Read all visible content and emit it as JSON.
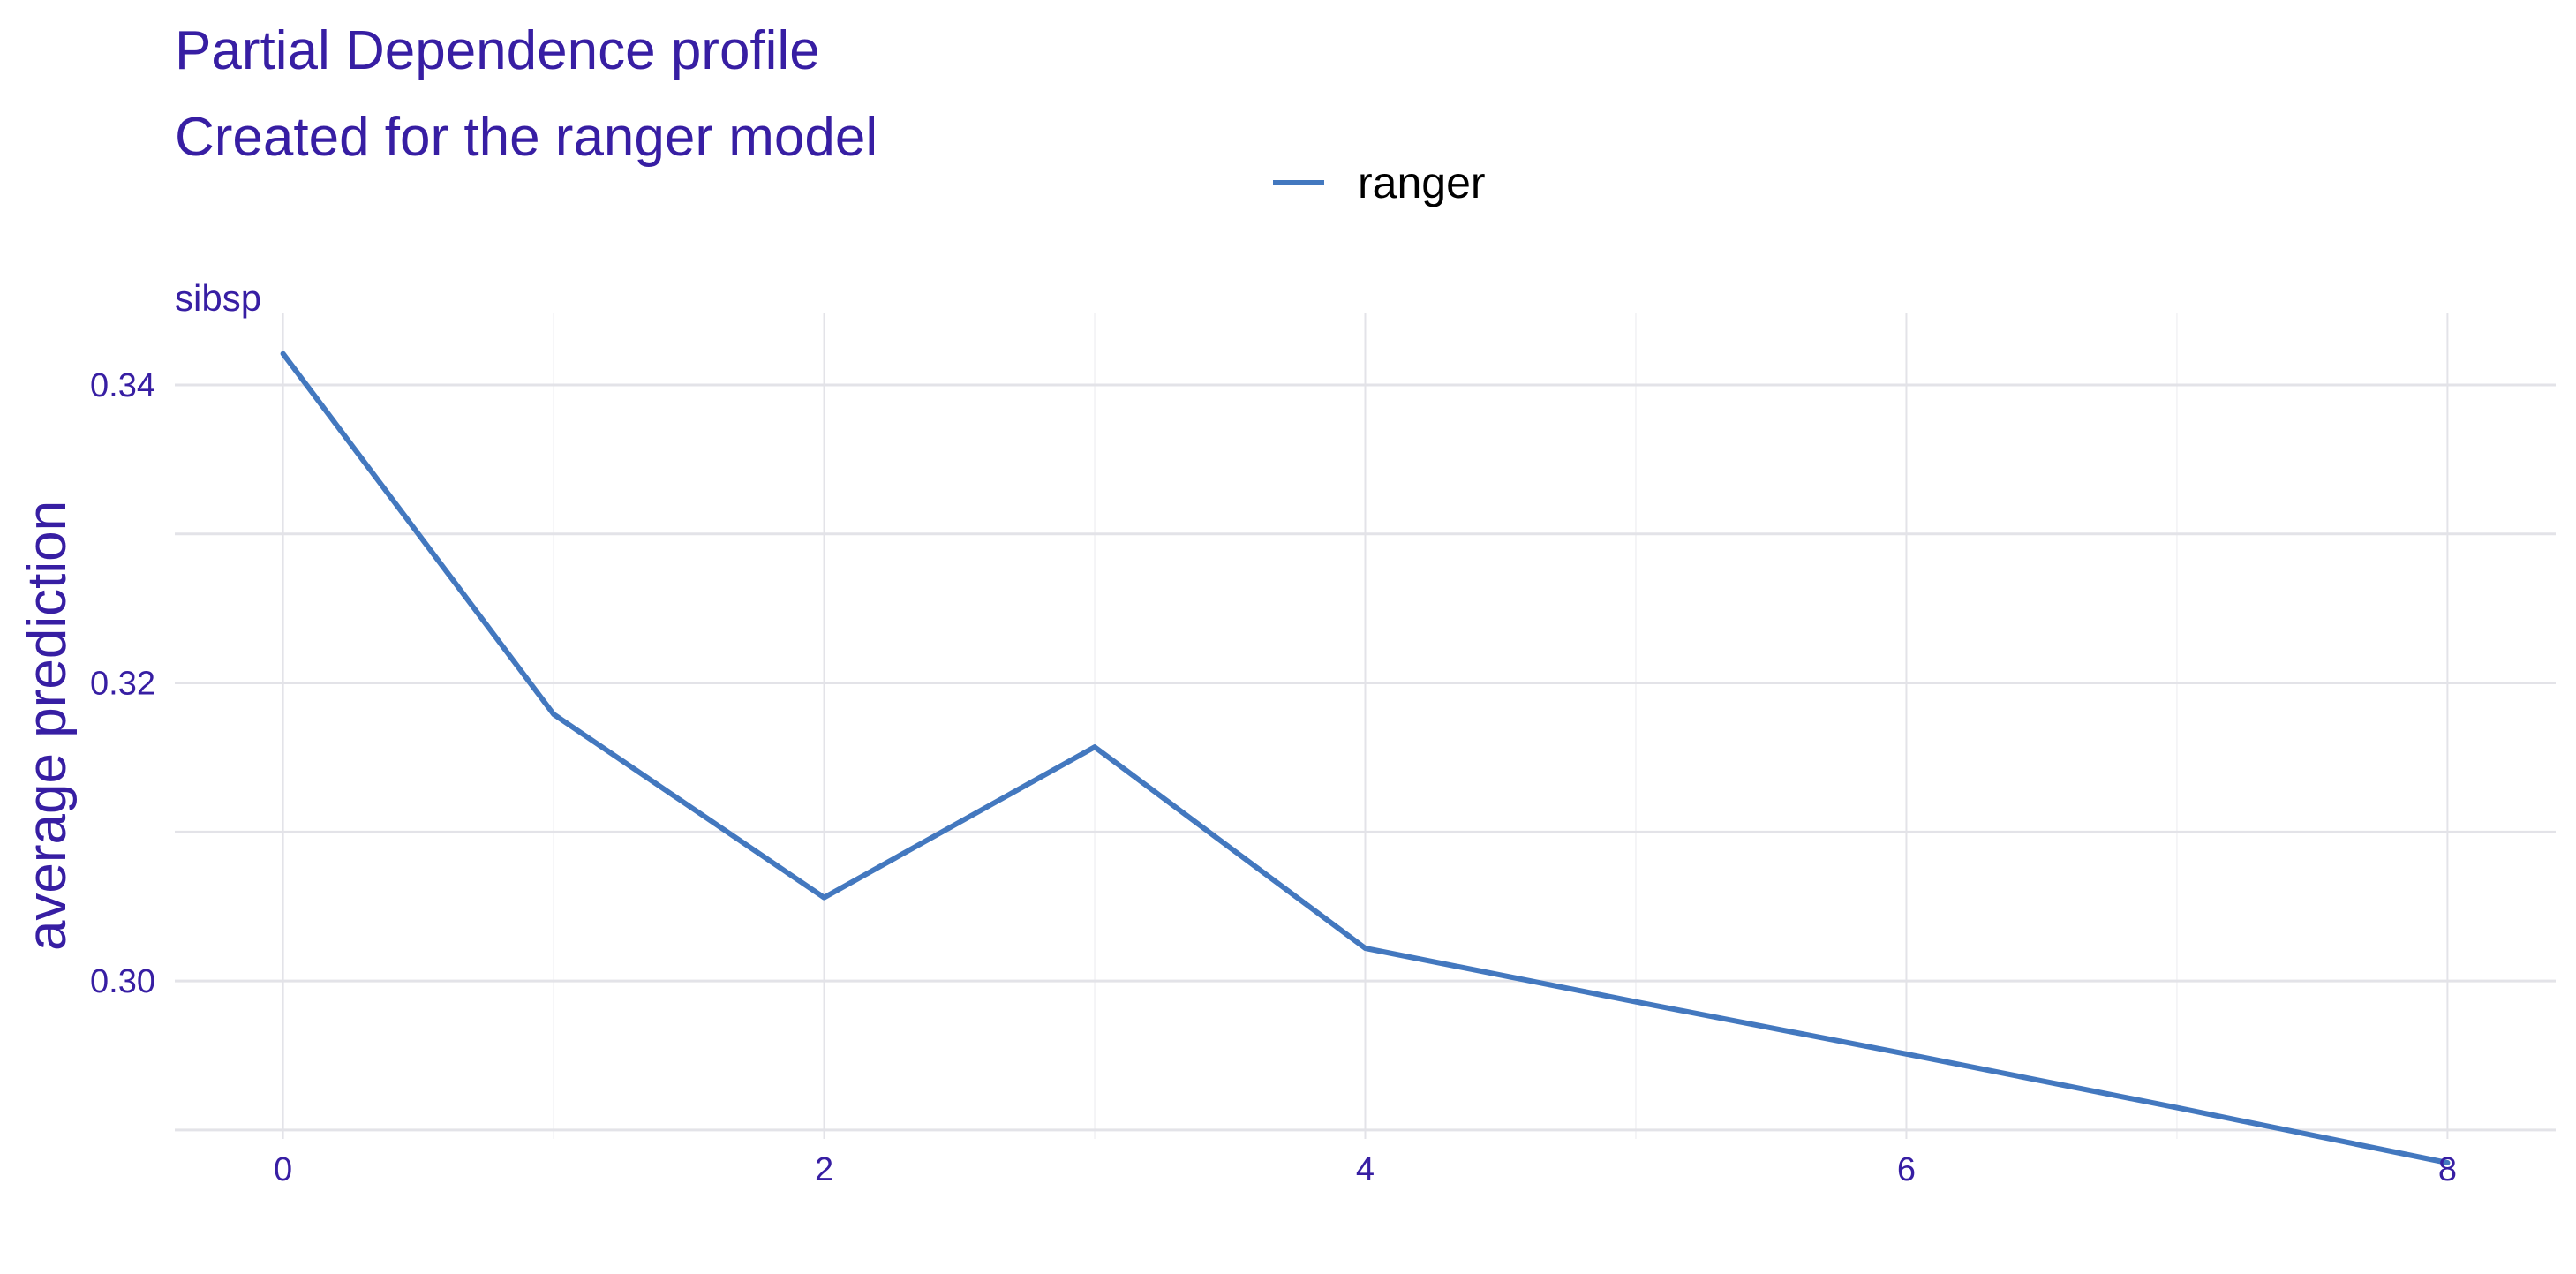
{
  "chart_data": {
    "type": "line",
    "title": "Partial Dependence profile",
    "subtitle": "Created for the ranger model",
    "facet_label": "sibsp",
    "xlabel": "",
    "ylabel": "average prediction",
    "x": [
      0,
      1,
      2,
      3,
      4,
      5,
      6,
      7,
      8
    ],
    "series": [
      {
        "name": "ranger",
        "values": [
          0.3421,
          0.3179,
          0.3056,
          0.3157,
          0.3022,
          0.2986,
          0.2951,
          0.2915,
          0.2878
        ]
      }
    ],
    "xlim": [
      -0.4,
      8.4
    ],
    "ylim": [
      0.2894,
      0.3448
    ],
    "xticks": [
      0,
      2,
      4,
      6,
      8
    ],
    "xtick_labels": [
      "0",
      "2",
      "4",
      "6",
      "8"
    ],
    "yticks": [
      0.3,
      0.32,
      0.34
    ],
    "ytick_labels": [
      "0.30",
      "0.32",
      "0.34"
    ],
    "grid": true,
    "legend_position": "top",
    "colors": {
      "series": "#4378bf",
      "text": "#371ea3",
      "legend_text": "#000000",
      "grid_major": "#e3e3e8",
      "grid_minor": "#f1f1f4"
    }
  }
}
